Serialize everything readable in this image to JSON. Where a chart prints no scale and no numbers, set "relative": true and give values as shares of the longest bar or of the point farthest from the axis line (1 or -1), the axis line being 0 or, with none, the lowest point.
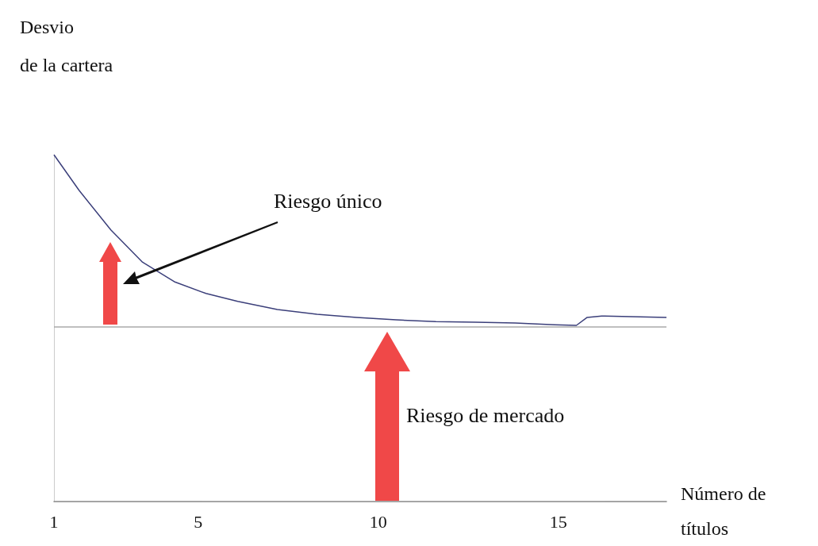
{
  "chart_data": {
    "type": "line",
    "relative": true,
    "ylabel": "Desvio de la cartera",
    "xlabel": "Número de títulos",
    "x": [
      1,
      1.7,
      2.58,
      3.46,
      4.34,
      5.22,
      6.1,
      7.2,
      8.3,
      9.4,
      10.5,
      11.6,
      12.7,
      13.8,
      14.9,
      15.5,
      15.8,
      16.2,
      18
    ],
    "series": [
      {
        "color": "#3b3f7a",
        "values": [
          1,
          0.897,
          0.783,
          0.69,
          0.634,
          0.6,
          0.577,
          0.554,
          0.54,
          0.531,
          0.524,
          0.519,
          0.517,
          0.515,
          0.51,
          0.508,
          0.531,
          0.535,
          0.531
        ]
      }
    ],
    "xlim": [
      1,
      18
    ],
    "xticks": [
      1,
      5,
      10,
      15
    ],
    "grid": false,
    "marker": "none",
    "line_style": "solid",
    "ref_lines": [
      {
        "axis": "y",
        "value": 0.503,
        "color": "#aaaaaa"
      }
    ],
    "annotations": [
      "Riesgo único",
      "Riesgo de mercado"
    ]
  }
}
